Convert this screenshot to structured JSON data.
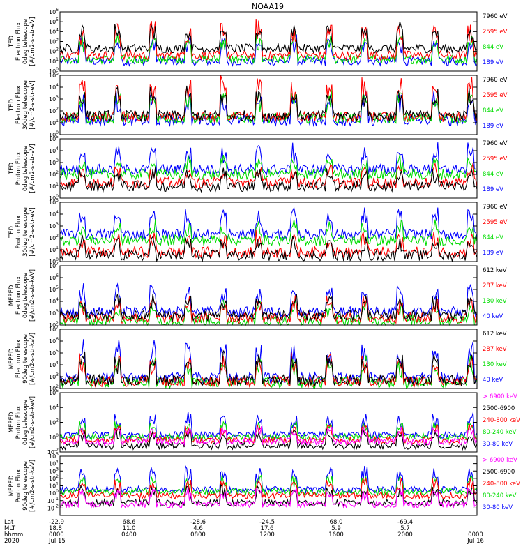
{
  "title": "NOAA19",
  "colors": {
    "black": "#000000",
    "red": "#ff0000",
    "green": "#00dd00",
    "blue": "#0000ff",
    "magenta": "#ff00ff"
  },
  "chart_data": [
    {
      "type": "line",
      "ylabel": [
        "TED",
        "Electron Flux",
        "0deg telescope",
        "[#/cm2-s-str-eV]"
      ],
      "ylog": [
        0,
        6
      ],
      "ticks": [
        0,
        1,
        2,
        3,
        4,
        5,
        6
      ],
      "series": [
        {
          "name": "7960 eV",
          "color": "#000000"
        },
        {
          "name": "2595 eV",
          "color": "#ff0000"
        },
        {
          "name": "844 eV",
          "color": "#00dd00"
        },
        {
          "name": "189 eV",
          "color": "#0000ff"
        }
      ],
      "profile": [
        2.3,
        1.6,
        1.2,
        1.0
      ],
      "spike": 2.8,
      "spikeIndex": 1,
      "spikeColors": [
        "#000000",
        "#ff0000",
        "#0000ff"
      ]
    },
    {
      "type": "line",
      "ylabel": [
        "TED",
        "Electron Flux",
        "30deg telescope",
        "[#/cm2-s-str-eV]"
      ],
      "ylog": [
        0,
        5
      ],
      "ticks": [
        0,
        1,
        2,
        3,
        4,
        5
      ],
      "series": [
        {
          "name": "7960 eV",
          "color": "#000000"
        },
        {
          "name": "2595 eV",
          "color": "#ff0000"
        },
        {
          "name": "844 eV",
          "color": "#00dd00"
        },
        {
          "name": "189 eV",
          "color": "#0000ff"
        }
      ],
      "profile": [
        1.6,
        1.5,
        1.4,
        1.2
      ],
      "spike": 2.6,
      "spikeIndex": 1,
      "spikeColors": [
        "#ff0000",
        "#00dd00",
        "#0000ff"
      ]
    },
    {
      "type": "line",
      "ylabel": [
        "TED",
        "Proton Flux",
        "0deg telescope",
        "[#/cm2-s-str-eV]"
      ],
      "ylog": [
        0,
        5
      ],
      "ticks": [
        0,
        1,
        2,
        3,
        4,
        5
      ],
      "series": [
        {
          "name": "7960 eV",
          "color": "#000000"
        },
        {
          "name": "2595 eV",
          "color": "#ff0000"
        },
        {
          "name": "844 eV",
          "color": "#00dd00"
        },
        {
          "name": "189 eV",
          "color": "#0000ff"
        }
      ],
      "profile": [
        1.0,
        1.3,
        2.0,
        2.4
      ],
      "spike": 1.6,
      "spikeIndex": 3,
      "spikeColors": [
        "#0000ff",
        "#00dd00"
      ]
    },
    {
      "type": "line",
      "ylabel": [
        "TED",
        "Proton Flux",
        "30deg telescope",
        "[#/cm2-s-str-eV]"
      ],
      "ylog": [
        0,
        5
      ],
      "ticks": [
        0,
        1,
        2,
        3,
        4,
        5
      ],
      "series": [
        {
          "name": "7960 eV",
          "color": "#000000"
        },
        {
          "name": "2595 eV",
          "color": "#ff0000"
        },
        {
          "name": "844 eV",
          "color": "#00dd00"
        },
        {
          "name": "189 eV",
          "color": "#0000ff"
        }
      ],
      "profile": [
        0.5,
        0.8,
        1.8,
        2.3
      ],
      "spike": 1.7,
      "spikeIndex": 3,
      "spikeColors": [
        "#0000ff"
      ]
    },
    {
      "type": "line",
      "ylabel": [
        "MEPED",
        "Electron Flux",
        "0deg telescope",
        "[#/cm2-s-str-keV]"
      ],
      "ylog": [
        2,
        7
      ],
      "ticks": [
        2,
        3,
        4,
        5,
        6,
        7
      ],
      "series": [
        {
          "name": "612 keV",
          "color": "#000000"
        },
        {
          "name": "287 keV",
          "color": "#ff0000"
        },
        {
          "name": "130 keV",
          "color": "#00dd00"
        },
        {
          "name": "40 keV",
          "color": "#0000ff"
        }
      ],
      "profile": [
        2.8,
        2.6,
        2.4,
        3.1
      ],
      "spike": 1.8,
      "spikeIndex": 3,
      "spikeColors": [
        "#0000ff",
        "#ff0000",
        "#000000"
      ]
    },
    {
      "type": "line",
      "ylabel": [
        "MEPED",
        "Electron Flux",
        "90deg telescope",
        "[#/cm2-s-str-keV]"
      ],
      "ylog": [
        2,
        7
      ],
      "ticks": [
        2,
        3,
        4,
        5,
        6,
        7
      ],
      "series": [
        {
          "name": "612 keV",
          "color": "#000000"
        },
        {
          "name": "287 keV",
          "color": "#ff0000"
        },
        {
          "name": "130 keV",
          "color": "#00dd00"
        },
        {
          "name": "40 keV",
          "color": "#0000ff"
        }
      ],
      "profile": [
        2.7,
        2.6,
        2.5,
        2.9
      ],
      "spike": 2.5,
      "spikeIndex": 3,
      "spikeColors": [
        "#0000ff",
        "#ff0000",
        "#00dd00",
        "#000000"
      ]
    },
    {
      "type": "line",
      "ylabel": [
        "MEPED",
        "Proton Flux",
        "0deg telescope",
        "[#/cm2-s-str-keV]"
      ],
      "ylog": [
        -2,
        6
      ],
      "ticks": [
        -2,
        0,
        2,
        4,
        6
      ],
      "series": [
        {
          "name": "> 6900 keV",
          "color": "#ff00ff"
        },
        {
          "name": "2500-6900",
          "color": "#000000"
        },
        {
          "name": "240-800 keV",
          "color": "#ff0000"
        },
        {
          "name": "80-240 keV",
          "color": "#00dd00"
        },
        {
          "name": "30-80 keV",
          "color": "#0000ff"
        }
      ],
      "profile": [
        -0.6,
        -1.2,
        -0.4,
        0.0,
        0.3
      ],
      "spike": 2.4,
      "spikeIndex": 4,
      "spikeColors": [
        "#0000ff",
        "#00dd00"
      ]
    },
    {
      "type": "line",
      "ylabel": [
        "MEPED",
        "Proton Flux",
        "90deg telescope",
        "[#/cm2-s-str-keV]"
      ],
      "ylog": [
        -3,
        5
      ],
      "ticks": [
        -2,
        -1,
        0,
        1,
        2,
        3,
        4,
        5
      ],
      "series": [
        {
          "name": "> 6900 keV",
          "color": "#ff00ff"
        },
        {
          "name": "2500-6900",
          "color": "#000000"
        },
        {
          "name": "240-800 keV",
          "color": "#ff0000"
        },
        {
          "name": "80-240 keV",
          "color": "#00dd00"
        },
        {
          "name": "30-80 keV",
          "color": "#0000ff"
        }
      ],
      "profile": [
        -1.5,
        -1.3,
        -0.3,
        0.2,
        0.5
      ],
      "spike": 2.5,
      "spikeIndex": 4,
      "spikeColors": [
        "#0000ff",
        "#00dd00",
        "#000000"
      ]
    }
  ],
  "x_axis": {
    "row_labels": [
      "Lat",
      "MLT",
      "hhmm",
      "2020"
    ],
    "columns": [
      {
        "lat": "-22.9",
        "mlt": "18.8",
        "hhmm": "0000",
        "date": "Jul 15"
      },
      {
        "lat": "68.6",
        "mlt": "11.0",
        "hhmm": "0400",
        "date": ""
      },
      {
        "lat": "-28.6",
        "mlt": "4.6",
        "hhmm": "0800",
        "date": ""
      },
      {
        "lat": "-24.5",
        "mlt": "17.6",
        "hhmm": "1200",
        "date": ""
      },
      {
        "lat": "68.0",
        "mlt": "5.9",
        "hhmm": "1600",
        "date": ""
      },
      {
        "lat": "-69.4",
        "mlt": "5.7",
        "hhmm": "2000",
        "date": ""
      },
      {
        "lat": "",
        "mlt": "",
        "hhmm": "0000",
        "date": "Jul 16"
      }
    ]
  }
}
